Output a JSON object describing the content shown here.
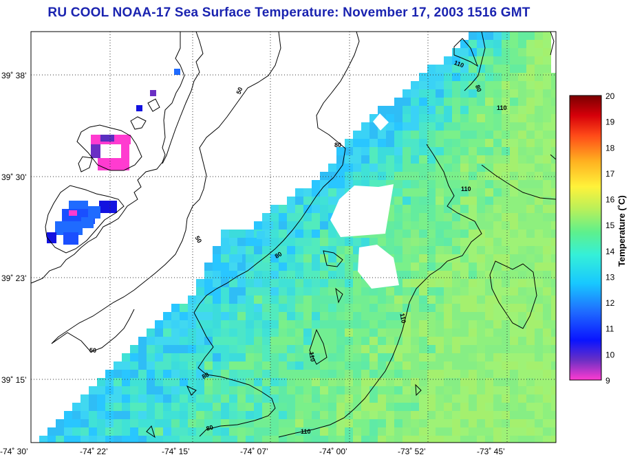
{
  "title": "RU COOL  NOAA-17  Sea Surface Temperature:  November 17, 2003 1516 GMT",
  "colorbar": {
    "label": "Temperature (˚C)",
    "ticks": [
      "20",
      "19",
      "18",
      "17",
      "16",
      "15",
      "14",
      "13",
      "12",
      "11",
      "10",
      "9"
    ],
    "range": [
      9,
      20
    ],
    "colors": [
      "#ff3bd0",
      "#6a2fc4",
      "#0a14ff",
      "#1f6bff",
      "#18c8ff",
      "#35f0d8",
      "#5ef08c",
      "#b8f05a",
      "#fff23a",
      "#ffb020",
      "#ff4a18",
      "#d6000a",
      "#7a0000"
    ]
  },
  "axes": {
    "lat_labels": [
      "39˚ 38’",
      "39˚ 30’",
      "39˚ 23’",
      "39˚ 15’"
    ],
    "lon_labels": [
      "-74˚ 30’",
      "-74˚ 22’",
      "-74˚ 15’",
      "-74˚ 07’",
      "-74˚ 00’",
      "-73˚ 52’",
      "-73˚ 45’"
    ],
    "grid": "dotted"
  },
  "contours": {
    "labels": [
      "50",
      "50",
      "50",
      "80",
      "80",
      "80",
      "80",
      "80",
      "110",
      "110",
      "110",
      "110",
      "110",
      "110"
    ]
  }
}
